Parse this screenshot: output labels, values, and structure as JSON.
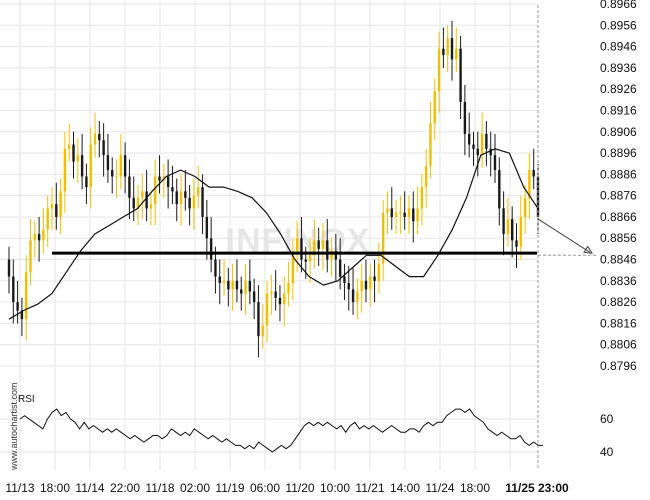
{
  "watermark": {
    "big": "INFINOX",
    "site": "www.autochartist.com"
  },
  "colors": {
    "bullish": "#f0c000",
    "bearish": "#1a1a1a",
    "ma": "#111111",
    "rsi": "#111111",
    "support": "#000000",
    "grid": "#e6e6e6"
  },
  "chart_data": [
    {
      "type": "candlestick",
      "title": "",
      "xlabel": "",
      "ylabel": "",
      "ylim": [
        0.8786,
        0.8966
      ],
      "y_ticks": [
        "0.8966",
        "0.8956",
        "0.8946",
        "0.8936",
        "0.8926",
        "0.8916",
        "0.8906",
        "0.8896",
        "0.8886",
        "0.8876",
        "0.8866",
        "0.8856",
        "0.8846",
        "0.8836",
        "0.8826",
        "0.8816",
        "0.8806",
        "0.8796"
      ],
      "x_ticks": [
        "11/13",
        "18:00",
        "11/14",
        "22:00",
        "11/18",
        "02:00",
        "11/19",
        "06:00",
        "11/20",
        "10:00",
        "11/21",
        "14:00",
        "11/24",
        "18:00",
        "11/25 23:00"
      ],
      "grid": true,
      "support_level": 0.8849,
      "forecast_target": 0.8848,
      "close_series": [
        0.8838,
        0.8826,
        0.8822,
        0.8818,
        0.884,
        0.8855,
        0.8858,
        0.8855,
        0.886,
        0.887,
        0.8872,
        0.8866,
        0.8878,
        0.8898,
        0.89,
        0.8892,
        0.8895,
        0.8885,
        0.888,
        0.89,
        0.8905,
        0.8902,
        0.8895,
        0.8888,
        0.8885,
        0.8885,
        0.8895,
        0.8885,
        0.8875,
        0.887,
        0.8875,
        0.8878,
        0.887,
        0.8872,
        0.8885,
        0.8883,
        0.8885,
        0.888,
        0.8878,
        0.8872,
        0.8878,
        0.8875,
        0.887,
        0.8876,
        0.888,
        0.8866,
        0.8856,
        0.8846,
        0.8838,
        0.8835,
        0.8836,
        0.8832,
        0.8836,
        0.8832,
        0.883,
        0.8836,
        0.8831,
        0.8826,
        0.881,
        0.8815,
        0.883,
        0.8831,
        0.8828,
        0.8825,
        0.883,
        0.8835,
        0.885,
        0.8856,
        0.8846,
        0.8845,
        0.8848,
        0.8855,
        0.8851,
        0.8855,
        0.8846,
        0.885,
        0.8846,
        0.8838,
        0.8835,
        0.8832,
        0.8826,
        0.8831,
        0.8836,
        0.8832,
        0.8838,
        0.8836,
        0.8844,
        0.8868,
        0.887,
        0.8866,
        0.8868,
        0.8868,
        0.8866,
        0.887,
        0.8864,
        0.887,
        0.888,
        0.889,
        0.891,
        0.8925,
        0.8945,
        0.8942,
        0.895,
        0.894,
        0.8945,
        0.892,
        0.8905,
        0.89,
        0.8898,
        0.8895,
        0.8905,
        0.8898,
        0.8895,
        0.8888,
        0.887,
        0.8858,
        0.8865,
        0.8855,
        0.8852,
        0.8866,
        0.8875,
        0.8888,
        0.8885,
        0.8866
      ],
      "ma_series": [
        0.8818,
        0.8822,
        0.8825,
        0.883,
        0.884,
        0.885,
        0.8858,
        0.8862,
        0.8866,
        0.887,
        0.8878,
        0.8885,
        0.8888,
        0.8885,
        0.888,
        0.888,
        0.8878,
        0.8875,
        0.8868,
        0.8858,
        0.8846,
        0.8838,
        0.8834,
        0.8836,
        0.8842,
        0.8848,
        0.8848,
        0.8843,
        0.8838,
        0.8838,
        0.8848,
        0.886,
        0.8875,
        0.8895,
        0.8898,
        0.8896,
        0.888,
        0.887
      ]
    },
    {
      "type": "line",
      "title": "RSI",
      "ylabel": "",
      "ylim": [
        33,
        72
      ],
      "y_ticks": [
        "60",
        "40"
      ],
      "series": [
        {
          "values": [
            60,
            62,
            60,
            58,
            56,
            54,
            60,
            64,
            66,
            62,
            64,
            60,
            58,
            54,
            58,
            54,
            56,
            54,
            52,
            54,
            52,
            54,
            52,
            50,
            48,
            50,
            48,
            46,
            48,
            50,
            50,
            48,
            50,
            54,
            52,
            50,
            52,
            50,
            54,
            52,
            50,
            48,
            50,
            48,
            46,
            48,
            46,
            44,
            44,
            42,
            44,
            42,
            46,
            44,
            42,
            40,
            42,
            44,
            42,
            44,
            48,
            52,
            56,
            58,
            56,
            58,
            56,
            58,
            56,
            54,
            56,
            52,
            56,
            58,
            54,
            56,
            54,
            56,
            54,
            52,
            54,
            56,
            54,
            52,
            52,
            54,
            54,
            52,
            56,
            58,
            56,
            58,
            58,
            62,
            64,
            66,
            66,
            64,
            66,
            62,
            60,
            58,
            54,
            52,
            50,
            52,
            50,
            48,
            48,
            50,
            46,
            44,
            46,
            44,
            44
          ]
        }
      ]
    }
  ]
}
